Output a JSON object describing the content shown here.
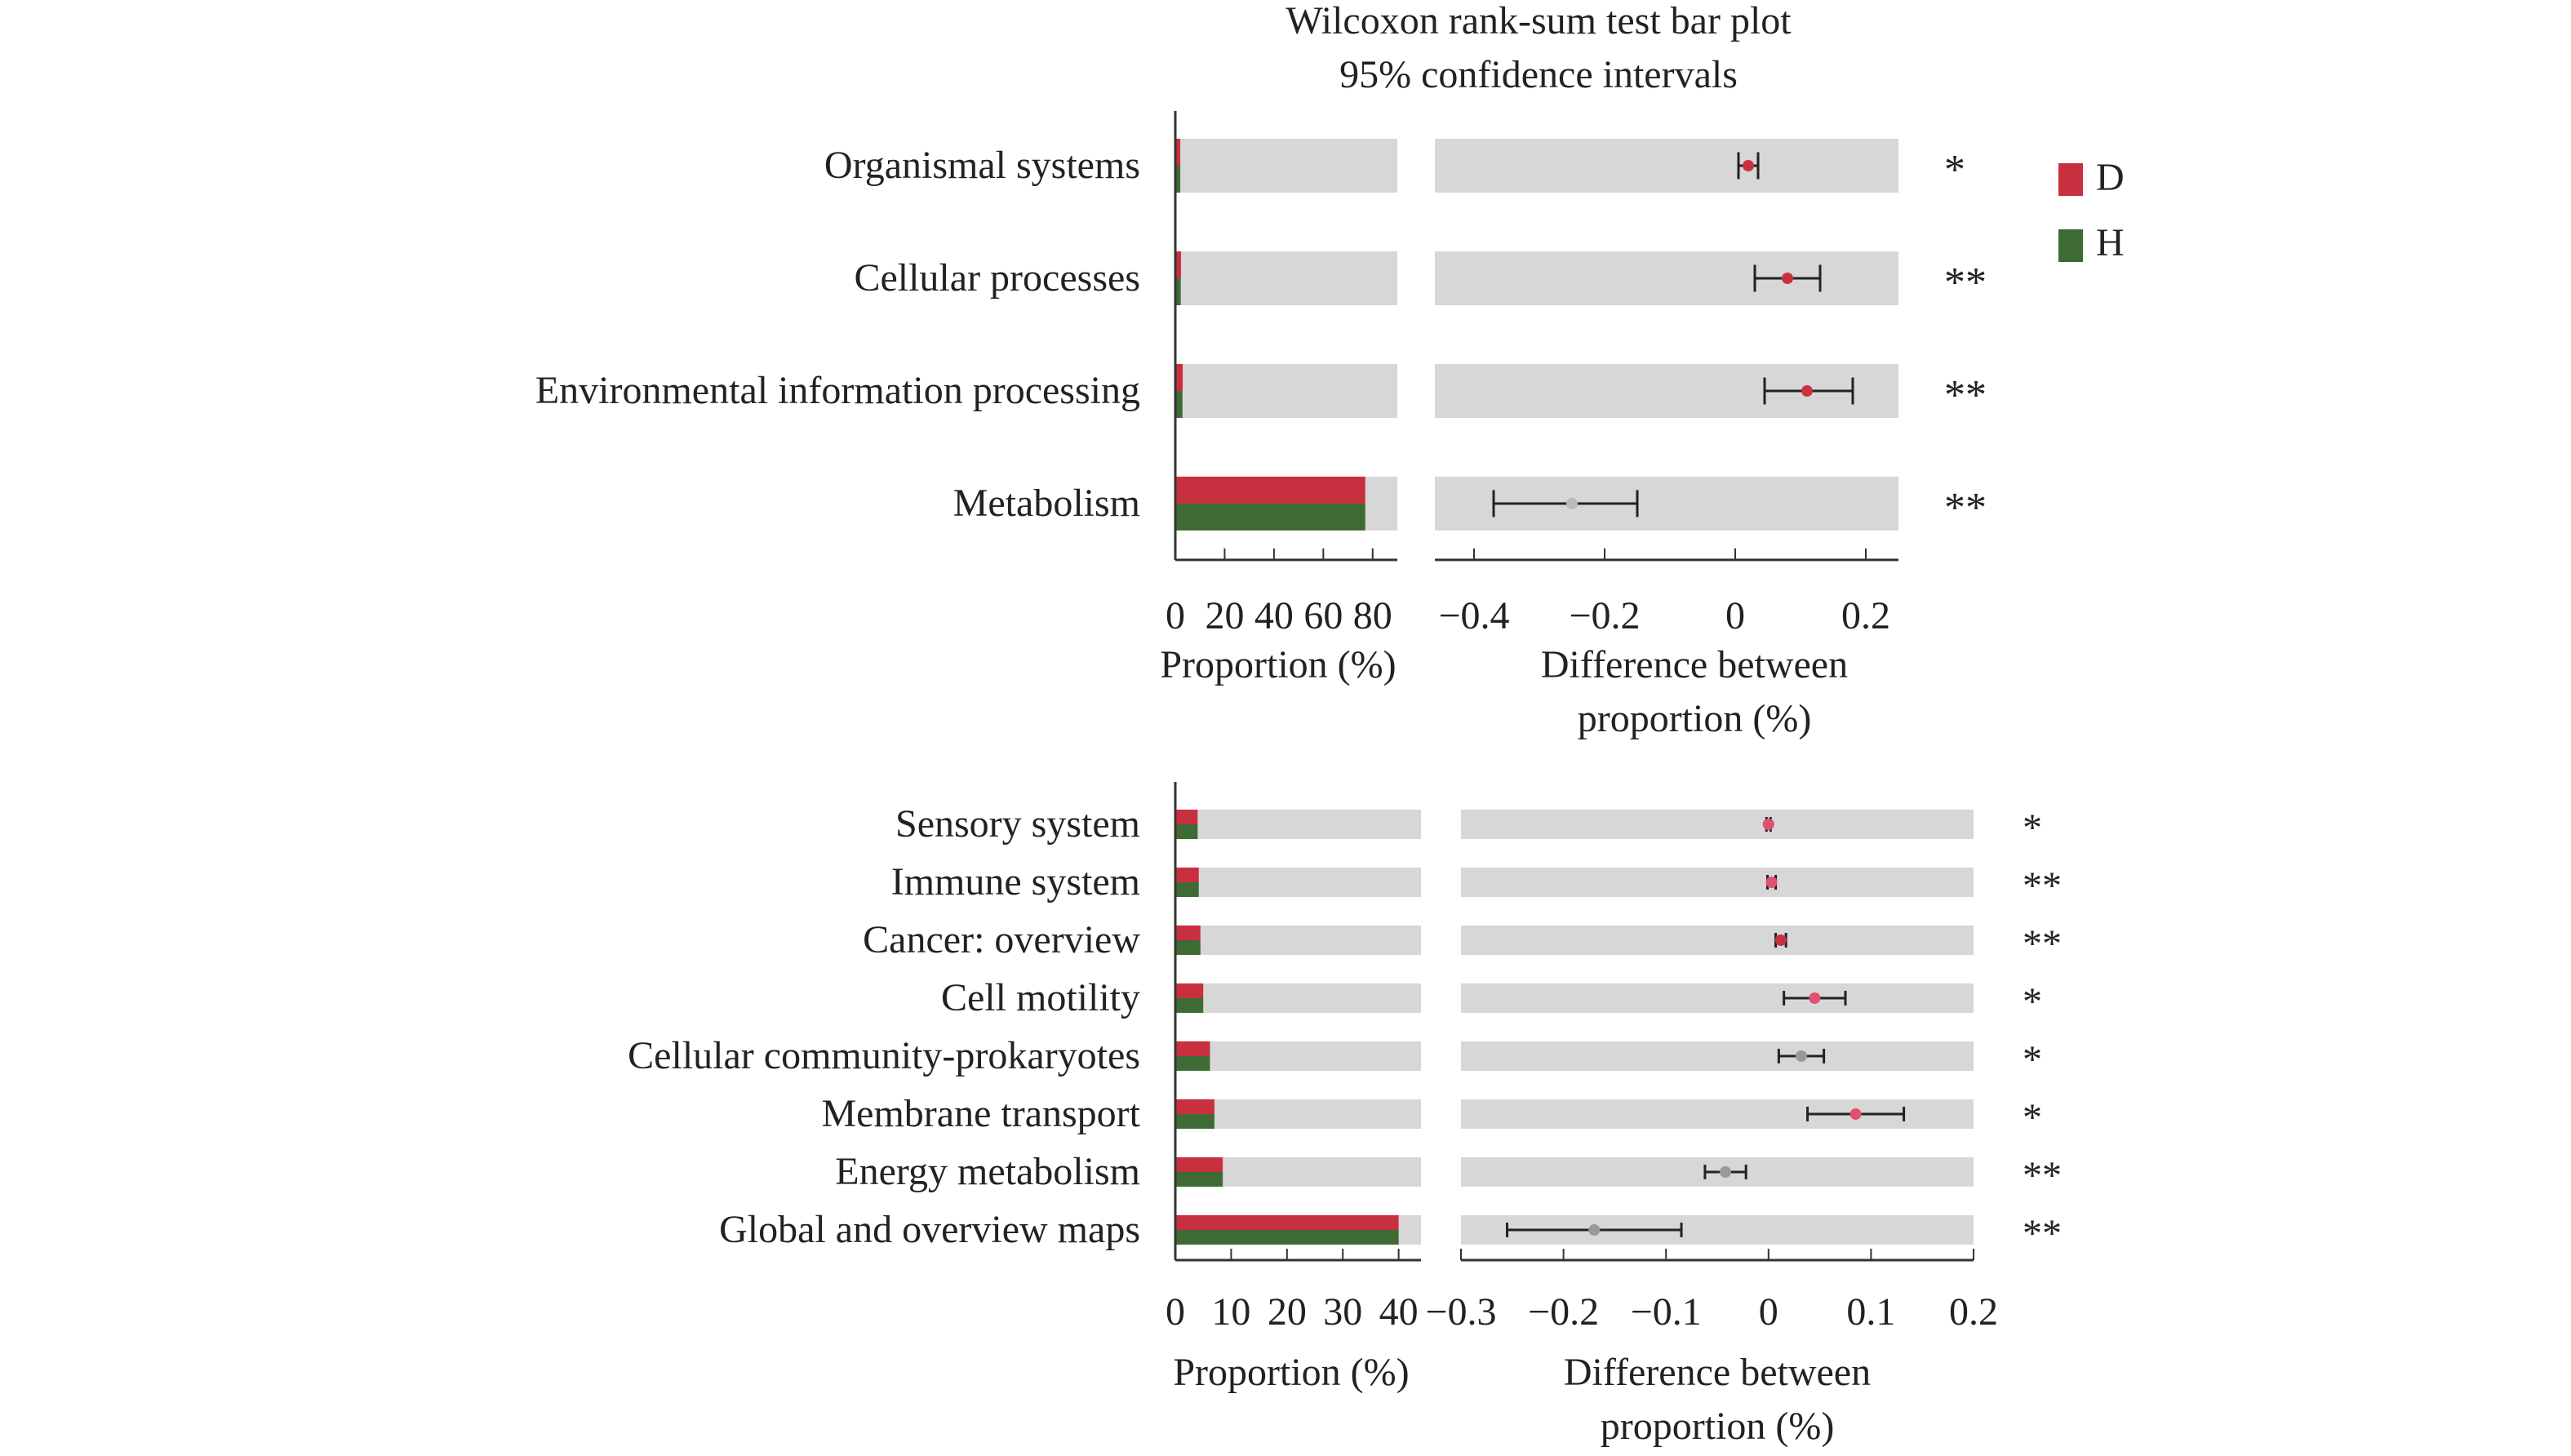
{
  "title_lines": [
    "Wilcoxon rank-sum test bar plot",
    "95% confidence intervals"
  ],
  "legend": [
    {
      "label": "D",
      "color": "#c8303f"
    },
    {
      "label": "H",
      "color": "#3d6b33"
    }
  ],
  "colors": {
    "track": "#d7d7d7",
    "star": "#cc2a4f",
    "errorbar": "#222222",
    "axis": "#333333"
  },
  "chart_data": [
    {
      "type": "bar",
      "xlabel_proportion": "Proportion (%)",
      "xlabel_difference": [
        "Difference between",
        "proportion (%)"
      ],
      "proportion_ticks": [
        0,
        20,
        40,
        60,
        80
      ],
      "proportion_tick_labels": [
        "0",
        "20",
        "40",
        "60",
        "80"
      ],
      "proportion_range": [
        0,
        90
      ],
      "difference_ticks": [
        -0.4,
        -0.2,
        0,
        0.2
      ],
      "difference_tick_labels": [
        "−0.4",
        "−0.2",
        "0",
        "0.2"
      ],
      "difference_range": [
        -0.46,
        0.25
      ],
      "categories": [
        "Organismal systems",
        "Cellular processes",
        "Environmental information processing",
        "Metabolism"
      ],
      "series": [
        {
          "name": "D",
          "values": [
            2.0,
            2.3,
            3.0,
            77.0
          ]
        },
        {
          "name": "H",
          "values": [
            2.0,
            2.2,
            2.9,
            77.0
          ]
        }
      ],
      "difference": [
        0.02,
        0.08,
        0.11,
        -0.25
      ],
      "ci_low": [
        0.005,
        0.03,
        0.045,
        -0.37
      ],
      "ci_high": [
        0.035,
        0.13,
        0.18,
        -0.15
      ],
      "point_colors": [
        "#c8303f",
        "#c8303f",
        "#c8303f",
        "#bbbbbb"
      ],
      "significance": [
        "*",
        "**",
        "**",
        "**"
      ]
    },
    {
      "type": "bar",
      "xlabel_proportion": "Proportion (%)",
      "xlabel_difference": [
        "Difference between",
        "proportion (%)"
      ],
      "proportion_ticks": [
        0,
        10,
        20,
        30,
        40
      ],
      "proportion_tick_labels": [
        "0",
        "10",
        "20",
        "30",
        "40"
      ],
      "proportion_range": [
        0,
        44
      ],
      "difference_ticks": [
        -0.3,
        -0.2,
        -0.1,
        0,
        0.1,
        0.2
      ],
      "difference_tick_labels": [
        "−0.3",
        "−0.2",
        "−0.1",
        "0",
        "0.1",
        "0.2"
      ],
      "difference_range": [
        -0.3,
        0.2
      ],
      "categories": [
        "Sensory system",
        "Immune system",
        "Cancer: overview",
        "Cell motility",
        "Cellular community-prokaryotes",
        "Membrane transport",
        "Energy metabolism",
        "Global and overview maps"
      ],
      "series": [
        {
          "name": "D",
          "values": [
            4.0,
            4.2,
            4.5,
            5.0,
            6.2,
            7.0,
            8.5,
            40.0
          ]
        },
        {
          "name": "H",
          "values": [
            4.0,
            4.2,
            4.5,
            5.0,
            6.2,
            7.0,
            8.5,
            40.0
          ]
        }
      ],
      "difference": [
        0.0,
        0.003,
        0.012,
        0.045,
        0.032,
        0.085,
        -0.042,
        -0.17
      ],
      "ci_low": [
        -0.002,
        -0.001,
        0.007,
        0.015,
        0.01,
        0.038,
        -0.062,
        -0.255
      ],
      "ci_high": [
        0.002,
        0.007,
        0.017,
        0.075,
        0.054,
        0.132,
        -0.022,
        -0.085
      ],
      "point_colors": [
        "#e05070",
        "#e05070",
        "#c8303f",
        "#e05070",
        "#999999",
        "#e05070",
        "#999999",
        "#999999"
      ],
      "significance": [
        "*",
        "**",
        "**",
        "*",
        "*",
        "*",
        "**",
        "**"
      ]
    }
  ]
}
